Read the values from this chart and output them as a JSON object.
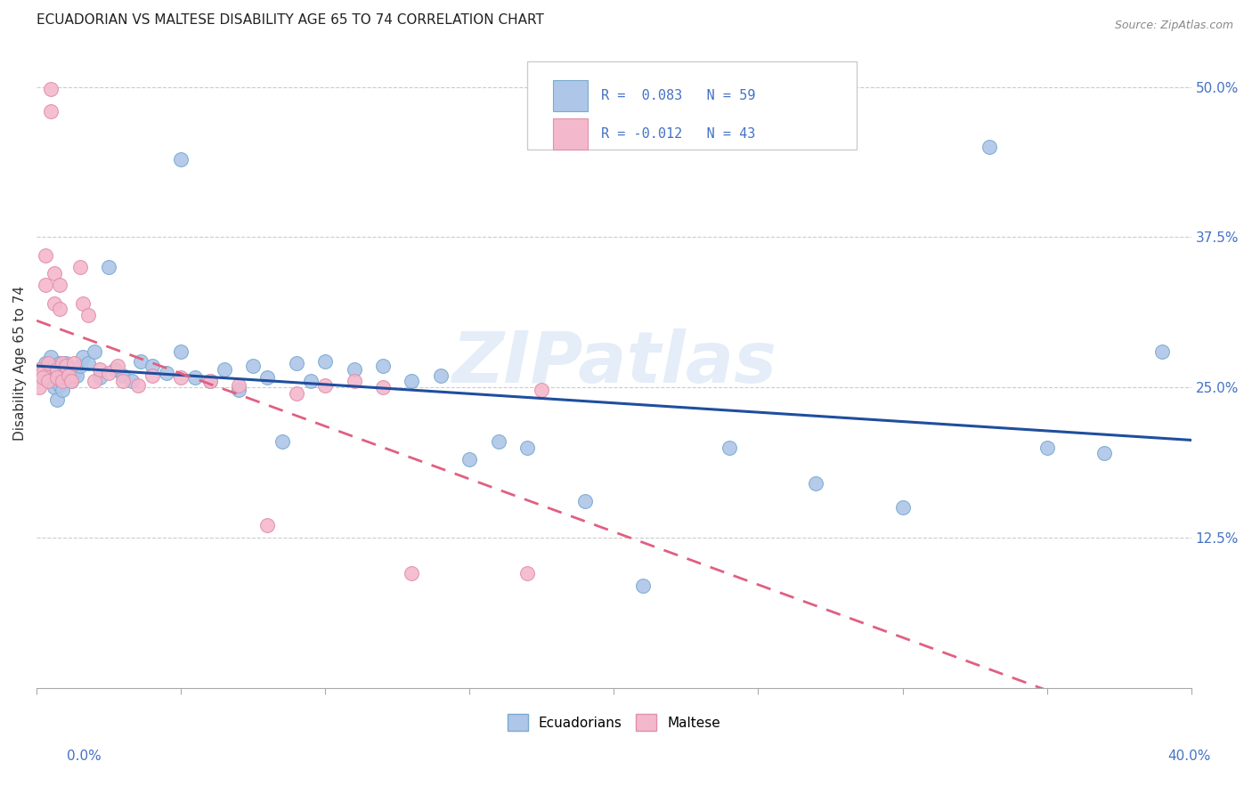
{
  "title": "ECUADORIAN VS MALTESE DISABILITY AGE 65 TO 74 CORRELATION CHART",
  "source": "Source: ZipAtlas.com",
  "ylabel": "Disability Age 65 to 74",
  "watermark": "ZIPatlas",
  "ecuadorians_color": "#aec6e8",
  "ecuadorians_edge": "#7aaad0",
  "maltese_color": "#f4b8cc",
  "maltese_edge": "#e090a8",
  "line_blue": "#1f4e9e",
  "line_pink": "#e06080",
  "xlim": [
    0.0,
    0.4
  ],
  "ylim": [
    0.0,
    0.54
  ],
  "ecu_x": [
    0.002,
    0.003,
    0.004,
    0.005,
    0.005,
    0.006,
    0.006,
    0.007,
    0.007,
    0.008,
    0.008,
    0.009,
    0.009,
    0.01,
    0.01,
    0.011,
    0.012,
    0.013,
    0.014,
    0.015,
    0.016,
    0.018,
    0.02,
    0.022,
    0.025,
    0.027,
    0.03,
    0.033,
    0.036,
    0.04,
    0.045,
    0.05,
    0.055,
    0.06,
    0.065,
    0.07,
    0.075,
    0.08,
    0.085,
    0.09,
    0.095,
    0.1,
    0.11,
    0.12,
    0.13,
    0.14,
    0.15,
    0.16,
    0.17,
    0.19,
    0.21,
    0.24,
    0.27,
    0.3,
    0.33,
    0.35,
    0.37,
    0.39,
    0.05
  ],
  "ecu_y": [
    0.265,
    0.27,
    0.26,
    0.275,
    0.255,
    0.268,
    0.25,
    0.265,
    0.24,
    0.27,
    0.252,
    0.264,
    0.248,
    0.27,
    0.258,
    0.265,
    0.255,
    0.262,
    0.26,
    0.268,
    0.275,
    0.27,
    0.28,
    0.258,
    0.35,
    0.265,
    0.26,
    0.255,
    0.272,
    0.268,
    0.262,
    0.28,
    0.258,
    0.255,
    0.265,
    0.248,
    0.268,
    0.258,
    0.205,
    0.27,
    0.255,
    0.272,
    0.265,
    0.268,
    0.255,
    0.26,
    0.19,
    0.205,
    0.2,
    0.155,
    0.085,
    0.2,
    0.17,
    0.15,
    0.45,
    0.2,
    0.195,
    0.28,
    0.44
  ],
  "mal_x": [
    0.001,
    0.001,
    0.002,
    0.002,
    0.003,
    0.003,
    0.004,
    0.004,
    0.005,
    0.005,
    0.006,
    0.006,
    0.007,
    0.007,
    0.008,
    0.008,
    0.009,
    0.009,
    0.01,
    0.011,
    0.012,
    0.013,
    0.015,
    0.016,
    0.018,
    0.02,
    0.022,
    0.025,
    0.028,
    0.03,
    0.035,
    0.04,
    0.05,
    0.06,
    0.07,
    0.08,
    0.09,
    0.1,
    0.11,
    0.12,
    0.13,
    0.17,
    0.175
  ],
  "mal_y": [
    0.265,
    0.25,
    0.262,
    0.258,
    0.36,
    0.335,
    0.27,
    0.255,
    0.498,
    0.48,
    0.345,
    0.32,
    0.265,
    0.258,
    0.335,
    0.315,
    0.27,
    0.255,
    0.268,
    0.26,
    0.255,
    0.27,
    0.35,
    0.32,
    0.31,
    0.255,
    0.265,
    0.262,
    0.268,
    0.255,
    0.252,
    0.26,
    0.258,
    0.255,
    0.252,
    0.135,
    0.245,
    0.252,
    0.255,
    0.25,
    0.095,
    0.095,
    0.248
  ]
}
